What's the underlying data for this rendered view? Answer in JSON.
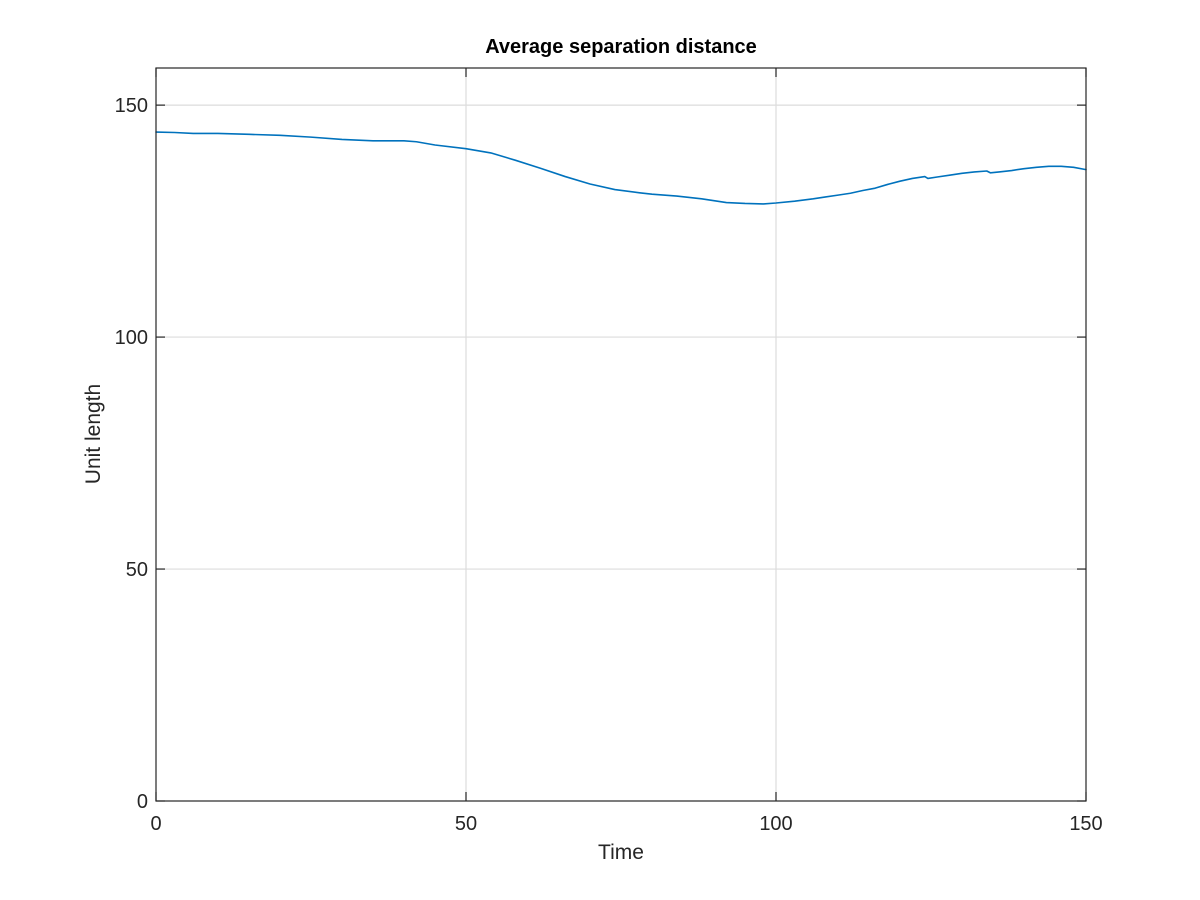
{
  "chart_data": {
    "type": "line",
    "title": "Average separation distance",
    "xlabel": "Time",
    "ylabel": "Unit length",
    "xlim": [
      0,
      150
    ],
    "ylim": [
      0,
      158
    ],
    "xticks": [
      0,
      50,
      100,
      150
    ],
    "xtick_labels": [
      "0",
      "50",
      "100",
      "150"
    ],
    "yticks": [
      0,
      50,
      100,
      150
    ],
    "ytick_labels": [
      "0",
      "50",
      "100",
      "150"
    ],
    "grid": true,
    "legend": "none",
    "series": [
      {
        "color": "#0072BD",
        "x": [
          0,
          3,
          6,
          10,
          15,
          20,
          25,
          30,
          35,
          40,
          42,
          45,
          50,
          54,
          58,
          62,
          66,
          70,
          74,
          78,
          80,
          84,
          88,
          90,
          92,
          95,
          98,
          100,
          103,
          106,
          108,
          110,
          112,
          114,
          116,
          118,
          120,
          122,
          124,
          124.5,
          126,
          128,
          130,
          132,
          134,
          134.6,
          136,
          138,
          140,
          142,
          144,
          146,
          148,
          150
        ],
        "y": [
          144.2,
          144.1,
          143.9,
          143.9,
          143.7,
          143.5,
          143.1,
          142.6,
          142.3,
          142.3,
          142.1,
          141.4,
          140.6,
          139.7,
          138.1,
          136.4,
          134.6,
          133.0,
          131.8,
          131.1,
          130.8,
          130.4,
          129.8,
          129.4,
          129.0,
          128.8,
          128.7,
          128.9,
          129.3,
          129.8,
          130.2,
          130.6,
          131.0,
          131.6,
          132.1,
          132.9,
          133.6,
          134.2,
          134.6,
          134.2,
          134.5,
          134.9,
          135.3,
          135.6,
          135.8,
          135.4,
          135.6,
          135.9,
          136.3,
          136.6,
          136.8,
          136.8,
          136.6,
          136.1
        ]
      }
    ]
  }
}
